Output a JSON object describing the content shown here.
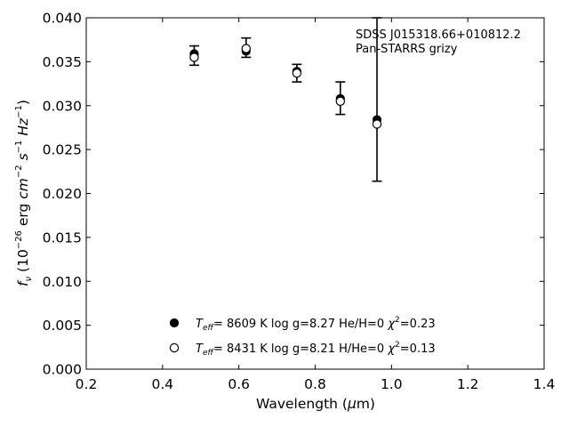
{
  "chart_data": {
    "type": "scatter",
    "xlabel": "Wavelength (μm)",
    "ylabel": "f_ν (10^-26 erg cm^-2 s^-1 Hz^-1)",
    "xlim": [
      0.2,
      1.4
    ],
    "ylim": [
      0.0,
      0.04
    ],
    "x_ticks": [
      "0.2",
      "0.4",
      "0.6",
      "0.8",
      "1.0",
      "1.2",
      "1.4"
    ],
    "y_ticks": [
      "0.000",
      "0.005",
      "0.010",
      "0.015",
      "0.020",
      "0.025",
      "0.030",
      "0.035",
      "0.040"
    ],
    "grid": false,
    "legend_placement": "lower-center",
    "annotations": [
      "SDSS J015318.66+010812.2",
      "Pan-STARRS grizy"
    ],
    "observed": {
      "x": [
        0.483,
        0.619,
        0.752,
        0.866,
        0.962
      ],
      "y": [
        0.0357,
        0.0365,
        0.0337,
        0.0309,
        0.0282
      ],
      "yerr_low": [
        0.0346,
        0.0355,
        0.0327,
        0.029,
        0.0214
      ],
      "yerr_high": [
        0.0368,
        0.0377,
        0.0347,
        0.0327,
        0.04
      ]
    },
    "series": [
      {
        "name": "Teff= 8609 K log g=8.27 He/H=0 χ2=0.23",
        "marker": "filled-circle",
        "teff": "8609 K",
        "logg": "log g=8.27",
        "comp": "He/H=0",
        "chi2": "=0.23",
        "x": [
          0.483,
          0.619,
          0.752,
          0.866,
          0.962
        ],
        "y": [
          0.0359,
          0.0362,
          0.0339,
          0.0308,
          0.0284
        ]
      },
      {
        "name": "Teff= 8431 K log g=8.21 H/He=0 χ2=0.13",
        "marker": "open-circle",
        "teff": "8431 K",
        "logg": "log g=8.21",
        "comp": "H/He=0",
        "chi2": "=0.13",
        "x": [
          0.483,
          0.619,
          0.752,
          0.866,
          0.962
        ],
        "y": [
          0.0355,
          0.0365,
          0.0337,
          0.0305,
          0.0279
        ]
      }
    ]
  },
  "colors": {
    "ink": "#000000",
    "background": "#ffffff"
  }
}
